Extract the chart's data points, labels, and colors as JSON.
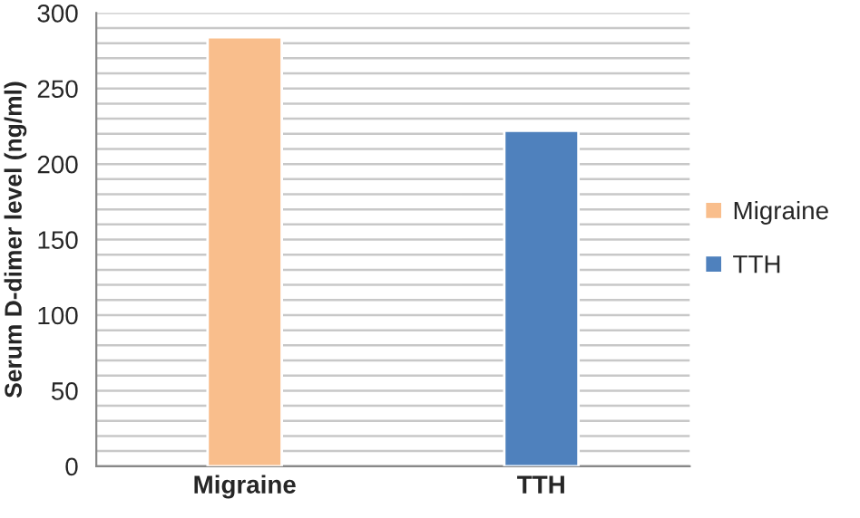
{
  "chart_data": {
    "type": "bar",
    "ylabel": "Serum D-dimer level (ng/ml)",
    "categories": [
      "Migraine",
      "TTH"
    ],
    "series": [
      {
        "name": "Migraine",
        "color": "#f9be8c",
        "values": [
          284,
          null
        ]
      },
      {
        "name": "TTH",
        "color": "#4f81bd",
        "values": [
          null,
          222
        ]
      }
    ],
    "ylim": [
      0,
      300
    ],
    "yticks": [
      0,
      {
        "value": 10,
        "label": null
      },
      {
        "value": 20,
        "label": null
      },
      {
        "value": 30,
        "label": null
      },
      {
        "value": 40,
        "label": null
      },
      50,
      {
        "value": 60,
        "label": null
      },
      {
        "value": 70,
        "label": null
      },
      {
        "value": 80,
        "label": null
      },
      {
        "value": 90,
        "label": null
      },
      100,
      {
        "value": 110,
        "label": null
      },
      {
        "value": 120,
        "label": null
      },
      {
        "value": 130,
        "label": null
      },
      {
        "value": 140,
        "label": null
      },
      150,
      {
        "value": 160,
        "label": null
      },
      {
        "value": 170,
        "label": null
      },
      {
        "value": 180,
        "label": null
      },
      {
        "value": 190,
        "label": null
      },
      200,
      {
        "value": 210,
        "label": null
      },
      {
        "value": 220,
        "label": null
      },
      {
        "value": 230,
        "label": null
      },
      {
        "value": 240,
        "label": null
      },
      250,
      {
        "value": 260,
        "label": null
      },
      {
        "value": 270,
        "label": null
      },
      {
        "value": 280,
        "label": null
      },
      {
        "value": 290,
        "label": null
      },
      300
    ],
    "grid": "y",
    "legend": "right"
  }
}
